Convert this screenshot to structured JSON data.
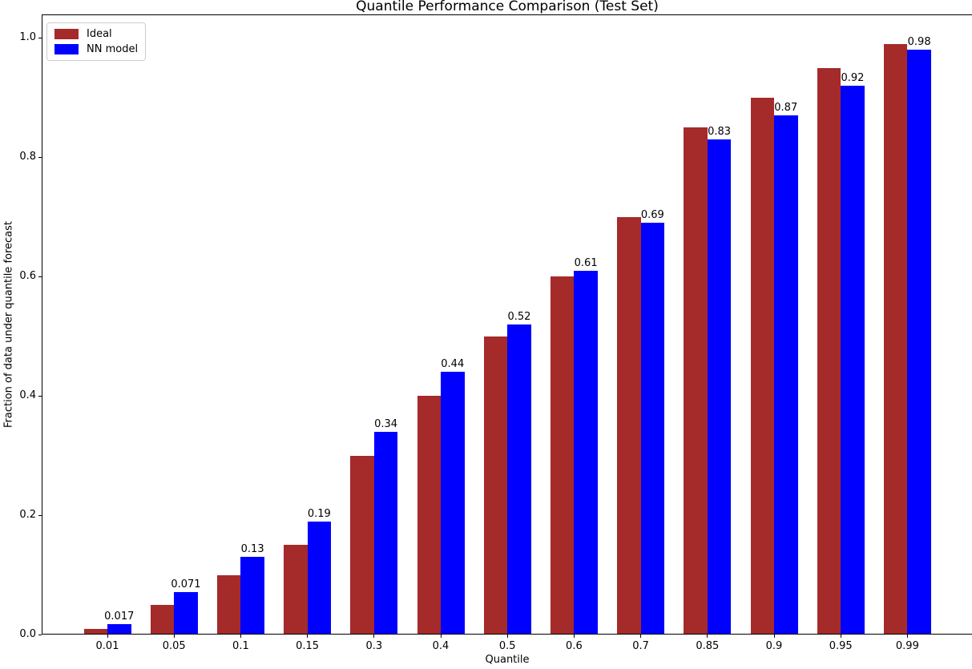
{
  "chart_data": {
    "type": "bar",
    "title": "Quantile Performance Comparison (Test Set)",
    "xlabel": "Quantile",
    "ylabel": "Fraction of data under quantile forecast",
    "categories": [
      "0.01",
      "0.05",
      "0.1",
      "0.15",
      "0.3",
      "0.4",
      "0.5",
      "0.6",
      "0.7",
      "0.85",
      "0.9",
      "0.95",
      "0.99"
    ],
    "series": [
      {
        "name": "Ideal",
        "color": "#A52A2A",
        "values": [
          0.01,
          0.05,
          0.1,
          0.15,
          0.3,
          0.4,
          0.5,
          0.6,
          0.7,
          0.85,
          0.9,
          0.95,
          0.99
        ]
      },
      {
        "name": "NN model",
        "color": "#0000FF",
        "values": [
          0.017,
          0.071,
          0.13,
          0.19,
          0.34,
          0.44,
          0.52,
          0.61,
          0.69,
          0.83,
          0.87,
          0.92,
          0.98
        ],
        "value_labels": [
          "0.017",
          "0.071",
          "0.13",
          "0.19",
          "0.34",
          "0.44",
          "0.52",
          "0.61",
          "0.69",
          "0.83",
          "0.87",
          "0.92",
          "0.98"
        ]
      }
    ],
    "yticks": [
      "0.0",
      "0.2",
      "0.4",
      "0.6",
      "0.8",
      "1.0"
    ],
    "ylim": [
      0,
      1.0395
    ],
    "grid": false,
    "legend_position": "upper left",
    "axis_color": "#000000",
    "text_color": "#000000",
    "legend_border_color": "#cccccc"
  }
}
